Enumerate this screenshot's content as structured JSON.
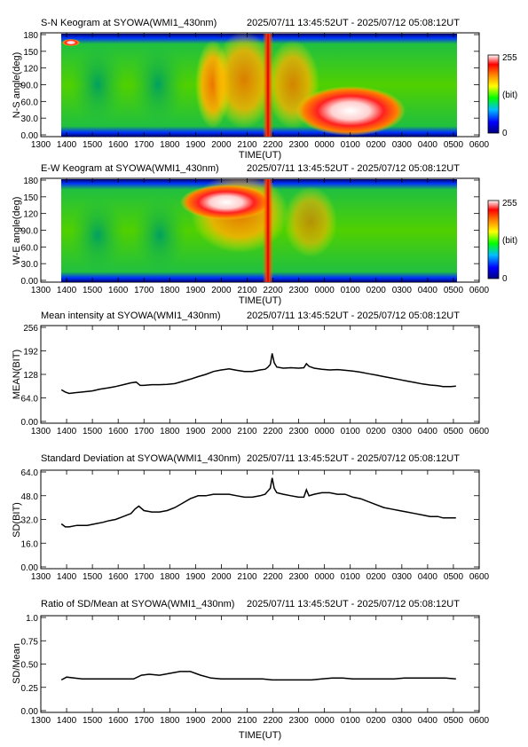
{
  "time_range": "2025/07/11 13:45:52UT - 2025/07/12 05:08:12UT",
  "time_ticks": [
    "1300",
    "1400",
    "1500",
    "1600",
    "1700",
    "1800",
    "1900",
    "2000",
    "2100",
    "2200",
    "2300",
    "0000",
    "0100",
    "0200",
    "0300",
    "0400",
    "0500",
    "0600"
  ],
  "time_axis_label": "TIME(UT)",
  "chart_data": [
    {
      "type": "heatmap",
      "title": "S-N Keogram at SYOWA(WMI1_430nm)",
      "ylabel": "N-S angle(deg)",
      "xlabel": "TIME(UT)",
      "ylim": [
        0,
        180
      ],
      "yticks": [
        "0.00",
        "30.0",
        "60.0",
        "90.0",
        "120",
        "150",
        "180"
      ],
      "colorbar": {
        "min_label": "0",
        "max_label": "255",
        "unit_label": "(bit)",
        "colors": [
          "#000080",
          "#0000ff",
          "#00bfff",
          "#00ff00",
          "#ffff00",
          "#ff8000",
          "#ff0000",
          "#ffffff"
        ]
      },
      "features": [
        {
          "x": 13.95,
          "y": 170,
          "intensity": 255,
          "note": "bright spot near horizon at start"
        },
        {
          "x": 21.95,
          "y": 90,
          "intensity": 230,
          "note": "vertical red streak across all angles"
        },
        {
          "x": 23.6,
          "y": 40,
          "intensity": 240,
          "note": "bright patch 60-20 deg, 2330-0230"
        },
        {
          "x": 19.9,
          "y": 90,
          "intensity": 190,
          "note": "orange band 1850-2050"
        }
      ]
    },
    {
      "type": "heatmap",
      "title": "E-W Keogram at SYOWA(WMI1_430nm)",
      "ylabel": "W-E angle(deg)",
      "xlabel": "TIME(UT)",
      "ylim": [
        0,
        180
      ],
      "yticks": [
        "0.00",
        "30.0",
        "60.0",
        "90.0",
        "120",
        "150",
        "180"
      ],
      "colorbar": {
        "min_label": "0",
        "max_label": "255",
        "unit_label": "(bit)",
        "colors": [
          "#000080",
          "#0000ff",
          "#00bfff",
          "#00ff00",
          "#ffff00",
          "#ff8000",
          "#ff0000",
          "#ffffff"
        ]
      },
      "features": [
        {
          "x": 20.1,
          "y": 135,
          "intensity": 250,
          "note": "bright patch 150-110 deg, 1850-2200"
        },
        {
          "x": 21.95,
          "y": 90,
          "intensity": 230,
          "note": "vertical red streak across all angles"
        }
      ]
    },
    {
      "type": "line",
      "title": "Mean intensity at SYOWA(WMI1_430nm)",
      "ylabel": "MEAN(BIT)",
      "xlabel": "TIME(UT)",
      "ylim": [
        0,
        256
      ],
      "yticks": [
        "0.00",
        "64.0",
        "128",
        "192",
        "256"
      ],
      "x": [
        13.8,
        13.95,
        14.1,
        14.3,
        14.6,
        15.0,
        15.3,
        15.6,
        15.9,
        16.2,
        16.5,
        16.7,
        16.85,
        17.0,
        17.3,
        17.6,
        17.9,
        18.2,
        18.5,
        18.8,
        19.1,
        19.4,
        19.7,
        20.0,
        20.3,
        20.6,
        20.9,
        21.2,
        21.5,
        21.7,
        21.8,
        21.9,
        21.97,
        22.05,
        22.15,
        22.4,
        22.7,
        23.0,
        23.2,
        23.3,
        23.4,
        23.6,
        23.9,
        24.2,
        24.5,
        24.8,
        25.1,
        25.4,
        25.7,
        26.0,
        26.3,
        26.6,
        26.9,
        27.2,
        27.5,
        27.8,
        28.1,
        28.4,
        28.6,
        28.9,
        29.1
      ],
      "values": [
        86,
        80,
        76,
        78,
        80,
        83,
        88,
        91,
        95,
        100,
        105,
        107,
        98,
        98,
        100,
        100,
        101,
        103,
        109,
        115,
        122,
        128,
        136,
        140,
        143,
        139,
        136,
        136,
        140,
        142,
        147,
        155,
        185,
        160,
        148,
        145,
        146,
        145,
        146,
        157,
        150,
        145,
        142,
        140,
        141,
        139,
        137,
        134,
        130,
        126,
        122,
        118,
        114,
        110,
        106,
        102,
        99,
        97,
        95,
        95,
        96
      ]
    },
    {
      "type": "line",
      "title": "Standard Deviation at SYOWA(WMI1_430nm)",
      "ylabel": "SD(BIT)",
      "xlabel": "TIME(UT)",
      "ylim": [
        0,
        64
      ],
      "yticks": [
        "0.00",
        "16.0",
        "32.0",
        "48.0",
        "64.0"
      ],
      "x": [
        13.8,
        13.95,
        14.1,
        14.4,
        14.8,
        15.1,
        15.4,
        15.6,
        15.9,
        16.2,
        16.5,
        16.65,
        16.8,
        17.0,
        17.3,
        17.6,
        17.9,
        18.2,
        18.5,
        18.8,
        19.1,
        19.4,
        19.7,
        20.0,
        20.3,
        20.6,
        20.9,
        21.2,
        21.5,
        21.7,
        21.8,
        21.9,
        21.97,
        22.05,
        22.15,
        22.4,
        22.7,
        23.0,
        23.2,
        23.3,
        23.4,
        23.6,
        23.9,
        24.2,
        24.5,
        24.8,
        25.1,
        25.4,
        25.7,
        26.0,
        26.3,
        26.6,
        26.9,
        27.2,
        27.5,
        27.8,
        28.1,
        28.4,
        28.6,
        28.9,
        29.1
      ],
      "values": [
        29,
        27,
        27,
        28,
        28,
        29,
        30,
        31,
        32,
        34,
        36,
        39,
        41,
        38,
        37,
        37,
        38,
        40,
        43,
        46,
        48,
        48,
        49,
        49,
        49,
        48,
        47,
        47,
        48,
        49,
        51,
        53,
        60,
        53,
        50,
        49,
        48,
        47,
        47,
        52,
        48,
        49,
        50,
        50,
        49,
        49,
        47,
        46,
        44,
        42,
        40,
        39,
        38,
        37,
        36,
        35,
        34,
        34,
        33,
        33,
        33
      ]
    },
    {
      "type": "line",
      "title": "Ratio of SD/Mean at SYOWA(WMI1_430nm)",
      "ylabel": "SD/Mean",
      "xlabel": "TIME(UT)",
      "ylim": [
        0,
        1
      ],
      "yticks": [
        "0.00",
        "0.25",
        "0.50",
        "0.75",
        "1.0"
      ],
      "x": [
        13.8,
        14.0,
        14.3,
        14.6,
        15.0,
        15.4,
        15.8,
        16.2,
        16.6,
        16.9,
        17.2,
        17.6,
        18.0,
        18.4,
        18.8,
        19.2,
        19.6,
        20.0,
        20.4,
        20.8,
        21.2,
        21.6,
        21.97,
        22.3,
        22.7,
        23.1,
        23.5,
        23.9,
        24.3,
        24.7,
        25.1,
        25.5,
        25.9,
        26.3,
        26.7,
        27.1,
        27.5,
        27.9,
        28.3,
        28.7,
        29.1
      ],
      "values": [
        0.33,
        0.36,
        0.35,
        0.34,
        0.34,
        0.34,
        0.34,
        0.34,
        0.34,
        0.38,
        0.39,
        0.38,
        0.4,
        0.42,
        0.42,
        0.38,
        0.35,
        0.34,
        0.34,
        0.34,
        0.34,
        0.34,
        0.33,
        0.33,
        0.33,
        0.33,
        0.33,
        0.34,
        0.35,
        0.35,
        0.34,
        0.34,
        0.34,
        0.34,
        0.34,
        0.35,
        0.35,
        0.35,
        0.35,
        0.35,
        0.34
      ]
    }
  ]
}
